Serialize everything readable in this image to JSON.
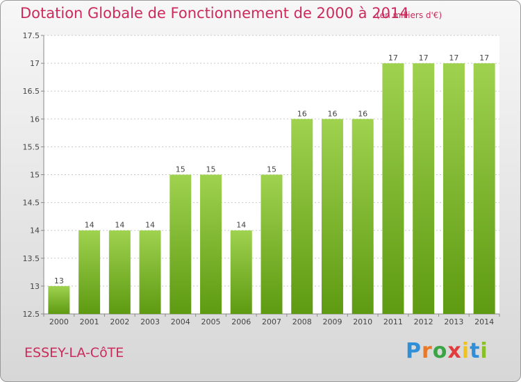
{
  "header": {
    "title": "Dotation Globale de Fonctionnement de 2000 à 2014",
    "subtitle": "(en milliers d'€)"
  },
  "footer": {
    "town": "ESSEY-LA-CôTE",
    "brand_letters": [
      {
        "ch": "P",
        "color": "#2f8fd8"
      },
      {
        "ch": "r",
        "color": "#e8792a"
      },
      {
        "ch": "o",
        "color": "#3aa545"
      },
      {
        "ch": "x",
        "color": "#e23b3b"
      },
      {
        "ch": "i",
        "color": "#f1c21b"
      },
      {
        "ch": "t",
        "color": "#2f8fd8"
      },
      {
        "ch": "i",
        "color": "#8bbf2a"
      }
    ]
  },
  "colors": {
    "title": "#cc2a5c",
    "bar_top": "#9fd24f",
    "bar_bottom": "#5e9a12",
    "grid": "#c8c8c8"
  },
  "chart_data": {
    "type": "bar",
    "categories": [
      "2000",
      "2001",
      "2002",
      "2003",
      "2004",
      "2005",
      "2006",
      "2007",
      "2008",
      "2009",
      "2010",
      "2011",
      "2012",
      "2013",
      "2014"
    ],
    "values": [
      13,
      14,
      14,
      14,
      15,
      15,
      14,
      15,
      16,
      16,
      16,
      17,
      17,
      17,
      17
    ],
    "data_labels": [
      "13",
      "14",
      "14",
      "14",
      "15",
      "15",
      "14",
      "15",
      "16",
      "16",
      "16",
      "17",
      "17",
      "17",
      "17"
    ],
    "yticks": [
      12.5,
      13,
      13.5,
      14,
      14.5,
      15,
      15.5,
      16,
      16.5,
      17,
      17.5
    ],
    "ytick_labels": [
      "12.5",
      "13",
      "13.5",
      "14",
      "14.5",
      "15",
      "15.5",
      "16",
      "16.5",
      "17",
      "17.5"
    ],
    "ylim": [
      12.5,
      17.5
    ],
    "grid": true
  }
}
